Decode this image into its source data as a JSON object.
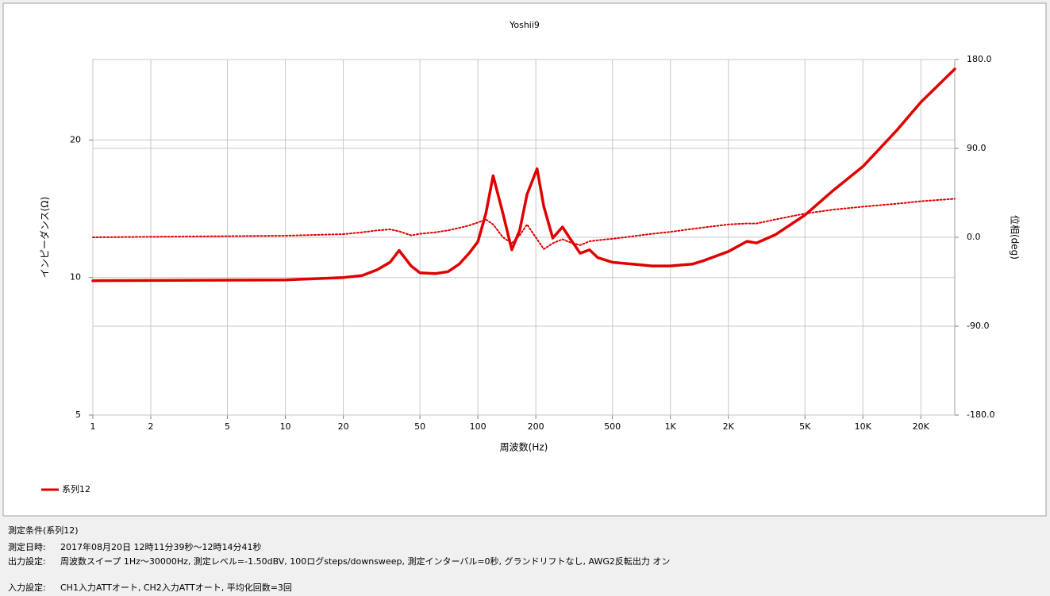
{
  "chart_data": {
    "type": "line",
    "title": "Yoshii9",
    "x_label": "周波数(Hz)",
    "y_label": "インピーダンス(Ω)",
    "y2_label": "位相(deg)",
    "log_x": true,
    "log_y": true,
    "grid": true,
    "legend": "bottom-left",
    "xlim": [
      1,
      30000
    ],
    "xticks": [
      1,
      2,
      5,
      10,
      20,
      50,
      100,
      200,
      500,
      {
        "value": 1000,
        "label": "1K"
      },
      {
        "value": 2000,
        "label": "2K"
      },
      {
        "value": 5000,
        "label": "5K"
      },
      {
        "value": 10000,
        "label": "10K"
      },
      {
        "value": 20000,
        "label": "20K"
      }
    ],
    "ylim": [
      5,
      30
    ],
    "yticks": [
      5,
      10,
      20
    ],
    "y2lim": [
      -180,
      180
    ],
    "y2ticks": [
      {
        "value": 180,
        "label": "180.0"
      },
      {
        "value": 90,
        "label": "90.0"
      },
      {
        "value": 0,
        "label": "0.0"
      },
      {
        "value": -90,
        "label": "-90.0"
      },
      {
        "value": -180,
        "label": "-180.0"
      }
    ],
    "x": [
      1,
      10,
      20,
      25,
      30,
      35,
      39,
      45,
      50,
      60,
      70,
      80,
      90,
      100,
      110,
      120,
      135,
      150,
      165,
      180,
      203,
      220,
      245,
      275,
      300,
      340,
      380,
      420,
      500,
      700,
      800,
      1000,
      1300,
      1500,
      2000,
      2500,
      2800,
      3500,
      5000,
      7000,
      10000,
      15000,
      20000,
      30000
    ],
    "series": [
      {
        "name": "系列12",
        "color": "#e00000",
        "line_style": "solid",
        "values": [
          9.84,
          9.88,
          10.0,
          10.1,
          10.4,
          10.8,
          11.46,
          10.6,
          10.24,
          10.2,
          10.3,
          10.7,
          11.3,
          11.98,
          13.8,
          16.7,
          13.8,
          11.5,
          12.7,
          15.2,
          17.3,
          14.3,
          12.2,
          12.9,
          12.2,
          11.3,
          11.5,
          11.05,
          10.8,
          10.66,
          10.6,
          10.6,
          10.7,
          10.9,
          11.4,
          12.0,
          11.9,
          12.4,
          13.7,
          15.5,
          17.5,
          21.0,
          24.2,
          28.6
        ]
      },
      {
        "axis": "y2",
        "color": "#e00000",
        "line_style": "dotted",
        "values": [
          0,
          1.6,
          3.2,
          5,
          7,
          8,
          6,
          2,
          3.5,
          5,
          7,
          9.5,
          12,
          15,
          18,
          13,
          0,
          -6,
          2,
          13,
          -2,
          -12,
          -6,
          -2,
          -5,
          -8,
          -4,
          -3,
          -1.5,
          2,
          3.5,
          5.5,
          8.5,
          10,
          13,
          14,
          14,
          18,
          24,
          28,
          31,
          34,
          36.5,
          39
        ]
      }
    ]
  },
  "conditions": {
    "title": "測定条件(系列12)",
    "rows": [
      {
        "label": "測定日時:",
        "value": "2017年08月20日 12時11分39秒～12時14分41秒"
      },
      {
        "label": "出力設定:",
        "value": "周波数スイープ 1Hz～30000Hz, 測定レベル=-1.50dBV, 100ログsteps/downsweep, 測定インターバル=0秒, グランドリフトなし, AWG2反転出力 オン"
      },
      {
        "label": "入力設定:",
        "value": "CH1入力ATTオート, CH2入力ATTオート, 平均化回数=3回"
      }
    ]
  }
}
